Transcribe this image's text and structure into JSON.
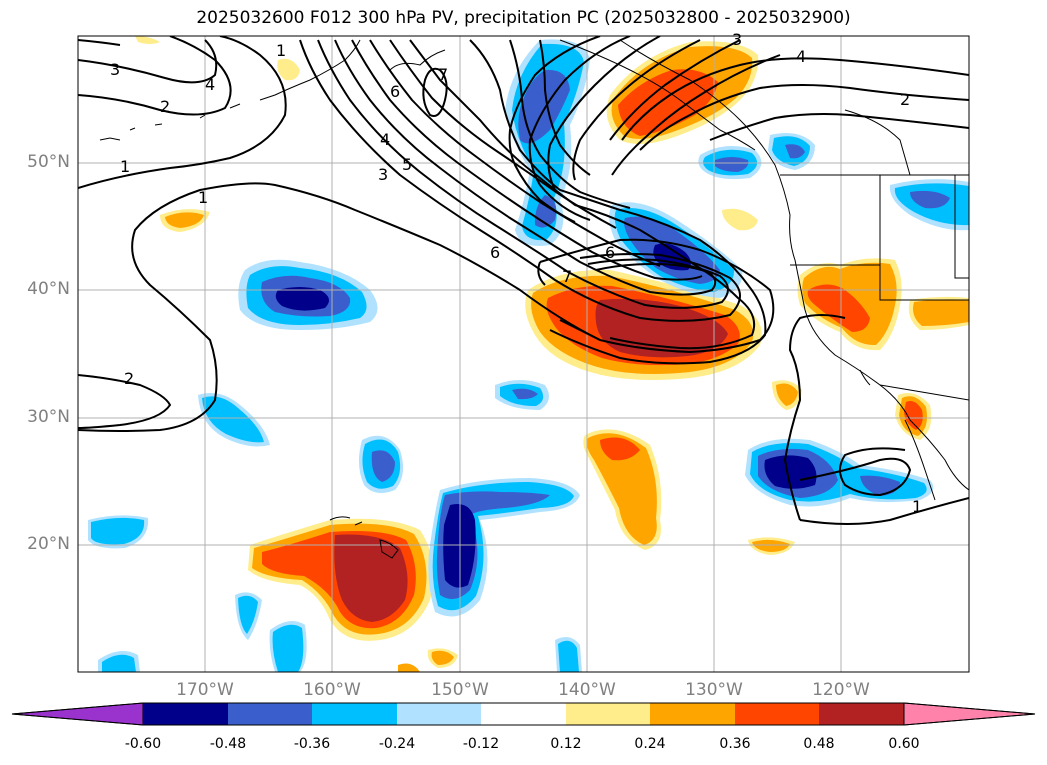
{
  "title": "2025032600 F012 300 hPa PV, precipitation PC (2025032800 - 2025032900)",
  "map": {
    "lon_range": [
      -180,
      -110
    ],
    "lat_range": [
      10,
      60
    ],
    "lat_labels": [
      "50°N",
      "40°N",
      "30°N",
      "20°N"
    ],
    "lon_labels": [
      "170°W",
      "160°W",
      "150°W",
      "140°W",
      "130°W",
      "120°W"
    ],
    "pv_contour_labels": [
      "1",
      "2",
      "3",
      "4",
      "5",
      "6",
      "7"
    ]
  },
  "colorbar": {
    "levels": [
      "-0.60",
      "-0.48",
      "-0.36",
      "-0.24",
      "-0.12",
      "0.12",
      "0.24",
      "0.36",
      "0.48",
      "0.60"
    ],
    "colors": [
      "#9a32cd",
      "#00008b",
      "#3a5fcd",
      "#00bfff",
      "#b0e2ff",
      "#ffffff",
      "#ffec8b",
      "#ffa500",
      "#ff4500",
      "#b22222",
      "#ff82ab"
    ],
    "extend": "both"
  },
  "colors": {
    "neg_strong": "#00008b",
    "neg_mid": "#3a5fcd",
    "neg_light": "#00bfff",
    "neg_faint": "#b0e2ff",
    "pos_faint": "#ffec8b",
    "pos_light": "#ffa500",
    "pos_mid": "#ff4500",
    "pos_strong": "#b22222",
    "grid": "#b0b0b0"
  }
}
